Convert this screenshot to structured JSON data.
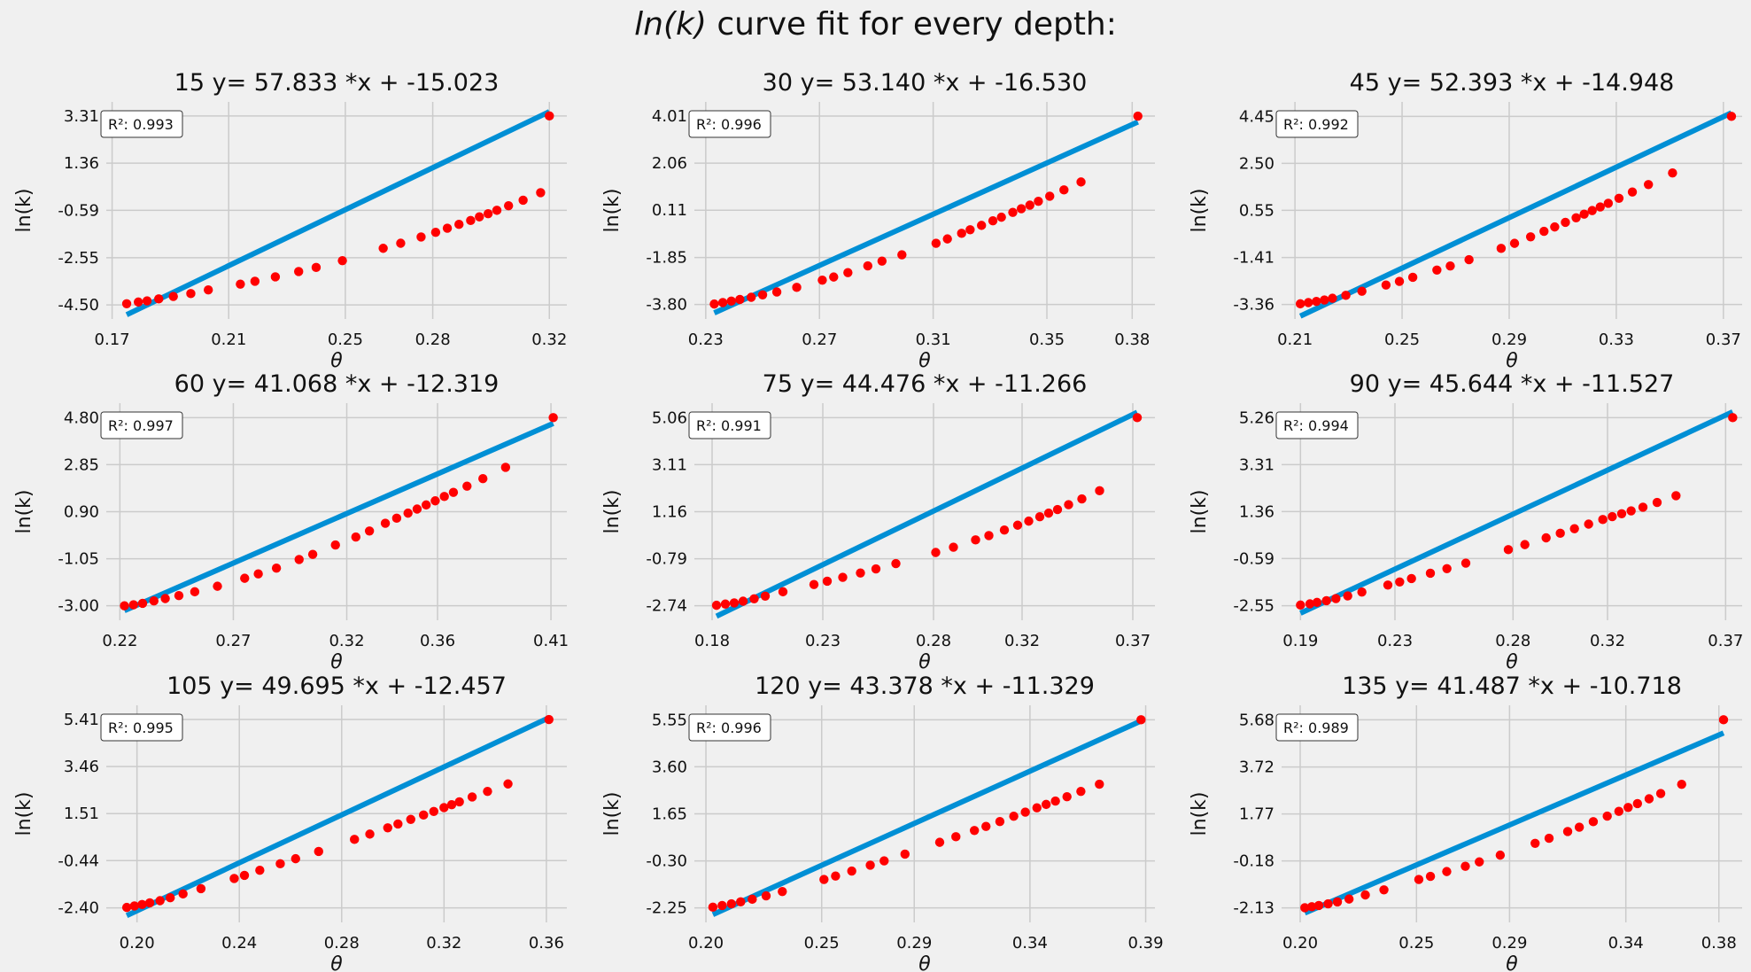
{
  "figure": {
    "suptitle": {
      "prefix": "ln",
      "var": "k",
      "suffix": " curve fit for every depth:"
    },
    "colors": {
      "background": "#f0f0f0",
      "grid": "#cbcbcb",
      "fit_line": "#008fd5",
      "points": "#ff0000",
      "text": "#111111"
    },
    "annotation_prefix": "R",
    "annotation_sup": "2"
  },
  "chart_data": [
    {
      "type": "scatter",
      "title": "15 y= 57.833 *x + -15.023",
      "xlabel": "θ",
      "ylabel": "ln(k)",
      "xlim": [
        0.168,
        0.326
      ],
      "ylim": [
        -5.08,
        3.89
      ],
      "xticks": [
        0.17,
        0.21,
        0.25,
        0.28,
        0.32
      ],
      "yticks": [
        -4.5,
        -2.55,
        -0.59,
        1.36,
        3.31
      ],
      "r2_label": "R²: 0.993",
      "fit": {
        "slope": 57.833,
        "intercept": -15.023,
        "x": [
          0.175,
          0.32
        ]
      },
      "points": [
        [
          0.175,
          -4.45
        ],
        [
          0.179,
          -4.38
        ],
        [
          0.182,
          -4.33
        ],
        [
          0.186,
          -4.25
        ],
        [
          0.191,
          -4.15
        ],
        [
          0.197,
          -4.03
        ],
        [
          0.203,
          -3.88
        ],
        [
          0.214,
          -3.64
        ],
        [
          0.219,
          -3.52
        ],
        [
          0.226,
          -3.34
        ],
        [
          0.234,
          -3.12
        ],
        [
          0.24,
          -2.95
        ],
        [
          0.249,
          -2.67
        ],
        [
          0.263,
          -2.16
        ],
        [
          0.269,
          -1.95
        ],
        [
          0.276,
          -1.69
        ],
        [
          0.281,
          -1.5
        ],
        [
          0.285,
          -1.33
        ],
        [
          0.289,
          -1.17
        ],
        [
          0.293,
          -1.01
        ],
        [
          0.296,
          -0.86
        ],
        [
          0.299,
          -0.73
        ],
        [
          0.302,
          -0.59
        ],
        [
          0.306,
          -0.4
        ],
        [
          0.311,
          -0.17
        ],
        [
          0.317,
          0.14
        ],
        [
          0.32,
          3.31
        ]
      ]
    },
    {
      "type": "scatter",
      "title": "30 y= 53.140 *x + -16.530",
      "xlabel": "θ",
      "ylabel": "ln(k)",
      "xlim": [
        0.226,
        0.388
      ],
      "ylim": [
        -4.4,
        4.6
      ],
      "xticks": [
        0.23,
        0.27,
        0.31,
        0.35,
        0.38
      ],
      "yticks": [
        -3.8,
        -1.85,
        0.11,
        2.06,
        4.01
      ],
      "r2_label": "R²: 0.996",
      "fit": {
        "slope": 53.14,
        "intercept": -16.53,
        "x": [
          0.233,
          0.382
        ]
      },
      "points": [
        [
          0.233,
          -3.78
        ],
        [
          0.236,
          -3.72
        ],
        [
          0.239,
          -3.66
        ],
        [
          0.242,
          -3.59
        ],
        [
          0.246,
          -3.5
        ],
        [
          0.25,
          -3.4
        ],
        [
          0.255,
          -3.28
        ],
        [
          0.262,
          -3.09
        ],
        [
          0.271,
          -2.79
        ],
        [
          0.275,
          -2.66
        ],
        [
          0.28,
          -2.48
        ],
        [
          0.287,
          -2.2
        ],
        [
          0.292,
          -2.0
        ],
        [
          0.299,
          -1.74
        ],
        [
          0.311,
          -1.26
        ],
        [
          0.315,
          -1.08
        ],
        [
          0.32,
          -0.85
        ],
        [
          0.323,
          -0.7
        ],
        [
          0.327,
          -0.52
        ],
        [
          0.331,
          -0.33
        ],
        [
          0.334,
          -0.18
        ],
        [
          0.338,
          0.02
        ],
        [
          0.341,
          0.17
        ],
        [
          0.344,
          0.32
        ],
        [
          0.347,
          0.48
        ],
        [
          0.351,
          0.69
        ],
        [
          0.356,
          0.95
        ],
        [
          0.362,
          1.28
        ],
        [
          0.382,
          4.01
        ]
      ]
    },
    {
      "type": "scatter",
      "title": "45 y= 52.393 *x + -14.948",
      "xlabel": "θ",
      "ylabel": "ln(k)",
      "xlim": [
        0.205,
        0.377
      ],
      "ylim": [
        -3.96,
        5.05
      ],
      "xticks": [
        0.21,
        0.25,
        0.29,
        0.33,
        0.37
      ],
      "yticks": [
        -3.36,
        -1.41,
        0.55,
        2.5,
        4.45
      ],
      "r2_label": "R²: 0.992",
      "fit": {
        "slope": 52.393,
        "intercept": -14.948,
        "x": [
          0.212,
          0.373
        ]
      },
      "points": [
        [
          0.212,
          -3.33
        ],
        [
          0.215,
          -3.28
        ],
        [
          0.218,
          -3.23
        ],
        [
          0.221,
          -3.17
        ],
        [
          0.224,
          -3.1
        ],
        [
          0.229,
          -2.98
        ],
        [
          0.235,
          -2.81
        ],
        [
          0.244,
          -2.55
        ],
        [
          0.249,
          -2.4
        ],
        [
          0.254,
          -2.23
        ],
        [
          0.263,
          -1.93
        ],
        [
          0.268,
          -1.76
        ],
        [
          0.275,
          -1.5
        ],
        [
          0.287,
          -1.03
        ],
        [
          0.292,
          -0.82
        ],
        [
          0.298,
          -0.55
        ],
        [
          0.303,
          -0.32
        ],
        [
          0.307,
          -0.14
        ],
        [
          0.311,
          0.05
        ],
        [
          0.315,
          0.24
        ],
        [
          0.318,
          0.39
        ],
        [
          0.321,
          0.54
        ],
        [
          0.324,
          0.69
        ],
        [
          0.327,
          0.84
        ],
        [
          0.331,
          1.05
        ],
        [
          0.336,
          1.31
        ],
        [
          0.342,
          1.62
        ],
        [
          0.351,
          2.1
        ],
        [
          0.373,
          4.45
        ]
      ]
    },
    {
      "type": "scatter",
      "title": "60 y= 41.068 *x + -12.319",
      "xlabel": "θ",
      "ylabel": "ln(k)",
      "xlim": [
        0.214,
        0.417
      ],
      "ylim": [
        -3.6,
        5.4
      ],
      "xticks": [
        0.22,
        0.27,
        0.32,
        0.36,
        0.41
      ],
      "yticks": [
        -3.0,
        -1.05,
        0.9,
        2.85,
        4.8
      ],
      "r2_label": "R²: 0.997",
      "fit": {
        "slope": 41.068,
        "intercept": -12.319,
        "x": [
          0.222,
          0.411
        ]
      },
      "points": [
        [
          0.222,
          -3.0
        ],
        [
          0.226,
          -2.96
        ],
        [
          0.23,
          -2.9
        ],
        [
          0.235,
          -2.8
        ],
        [
          0.24,
          -2.7
        ],
        [
          0.246,
          -2.58
        ],
        [
          0.253,
          -2.42
        ],
        [
          0.263,
          -2.19
        ],
        [
          0.275,
          -1.86
        ],
        [
          0.281,
          -1.68
        ],
        [
          0.289,
          -1.44
        ],
        [
          0.299,
          -1.08
        ],
        [
          0.305,
          -0.87
        ],
        [
          0.315,
          -0.48
        ],
        [
          0.324,
          -0.15
        ],
        [
          0.33,
          0.1
        ],
        [
          0.337,
          0.42
        ],
        [
          0.342,
          0.63
        ],
        [
          0.347,
          0.84
        ],
        [
          0.351,
          1.01
        ],
        [
          0.355,
          1.18
        ],
        [
          0.359,
          1.35
        ],
        [
          0.363,
          1.53
        ],
        [
          0.367,
          1.7
        ],
        [
          0.373,
          1.96
        ],
        [
          0.38,
          2.27
        ],
        [
          0.39,
          2.74
        ],
        [
          0.411,
          4.8
        ]
      ]
    },
    {
      "type": "scatter",
      "title": "75 y= 44.476 *x + -11.266",
      "xlabel": "θ",
      "ylabel": "ln(k)",
      "xlim": [
        0.172,
        0.38
      ],
      "ylim": [
        -3.34,
        5.66
      ],
      "xticks": [
        0.18,
        0.23,
        0.28,
        0.32,
        0.37
      ],
      "yticks": [
        -2.74,
        -0.79,
        1.16,
        3.11,
        5.06
      ],
      "r2_label": "R²: 0.991",
      "fit": {
        "slope": 44.476,
        "intercept": -11.266,
        "x": [
          0.182,
          0.372
        ]
      },
      "points": [
        [
          0.182,
          -2.72
        ],
        [
          0.186,
          -2.67
        ],
        [
          0.19,
          -2.62
        ],
        [
          0.194,
          -2.55
        ],
        [
          0.199,
          -2.45
        ],
        [
          0.204,
          -2.34
        ],
        [
          0.212,
          -2.16
        ],
        [
          0.226,
          -1.86
        ],
        [
          0.232,
          -1.72
        ],
        [
          0.239,
          -1.56
        ],
        [
          0.247,
          -1.38
        ],
        [
          0.254,
          -1.21
        ],
        [
          0.263,
          -0.99
        ],
        [
          0.281,
          -0.53
        ],
        [
          0.289,
          -0.31
        ],
        [
          0.299,
          -0.01
        ],
        [
          0.305,
          0.17
        ],
        [
          0.312,
          0.4
        ],
        [
          0.318,
          0.6
        ],
        [
          0.323,
          0.77
        ],
        [
          0.328,
          0.95
        ],
        [
          0.332,
          1.1
        ],
        [
          0.336,
          1.25
        ],
        [
          0.341,
          1.45
        ],
        [
          0.347,
          1.69
        ],
        [
          0.355,
          2.03
        ],
        [
          0.372,
          5.06
        ]
      ]
    },
    {
      "type": "scatter",
      "title": "90 y= 45.644 *x + -11.527",
      "xlabel": "θ",
      "ylabel": "ln(k)",
      "xlim": [
        0.182,
        0.377
      ],
      "ylim": [
        -3.15,
        5.86
      ],
      "xticks": [
        0.19,
        0.23,
        0.28,
        0.32,
        0.37
      ],
      "yticks": [
        -2.55,
        -0.59,
        1.36,
        3.31,
        5.26
      ],
      "r2_label": "R²: 0.994",
      "fit": {
        "slope": 45.644,
        "intercept": -11.527,
        "x": [
          0.19,
          0.373
        ]
      },
      "points": [
        [
          0.19,
          -2.52
        ],
        [
          0.194,
          -2.47
        ],
        [
          0.197,
          -2.41
        ],
        [
          0.201,
          -2.34
        ],
        [
          0.205,
          -2.25
        ],
        [
          0.21,
          -2.14
        ],
        [
          0.216,
          -1.98
        ],
        [
          0.227,
          -1.69
        ],
        [
          0.232,
          -1.56
        ],
        [
          0.237,
          -1.42
        ],
        [
          0.245,
          -1.2
        ],
        [
          0.252,
          -1.01
        ],
        [
          0.26,
          -0.78
        ],
        [
          0.278,
          -0.22
        ],
        [
          0.285,
          -0.01
        ],
        [
          0.294,
          0.27
        ],
        [
          0.3,
          0.46
        ],
        [
          0.306,
          0.65
        ],
        [
          0.312,
          0.84
        ],
        [
          0.318,
          1.03
        ],
        [
          0.322,
          1.15
        ],
        [
          0.326,
          1.27
        ],
        [
          0.33,
          1.39
        ],
        [
          0.335,
          1.54
        ],
        [
          0.341,
          1.74
        ],
        [
          0.349,
          2.02
        ],
        [
          0.373,
          5.26
        ]
      ]
    },
    {
      "type": "scatter",
      "title": "105 y= 49.695 *x + -12.457",
      "xlabel": "θ",
      "ylabel": "ln(k)",
      "xlim": [
        0.188,
        0.368
      ],
      "ylim": [
        -3.0,
        6.0
      ],
      "xticks": [
        0.2,
        0.24,
        0.28,
        0.32,
        0.36
      ],
      "yticks": [
        -2.4,
        -0.44,
        1.51,
        3.46,
        5.41
      ],
      "r2_label": "R²: 0.995",
      "fit": {
        "slope": 49.695,
        "intercept": -12.457,
        "x": [
          0.196,
          0.361
        ]
      },
      "points": [
        [
          0.196,
          -2.38
        ],
        [
          0.199,
          -2.32
        ],
        [
          0.202,
          -2.26
        ],
        [
          0.205,
          -2.19
        ],
        [
          0.209,
          -2.1
        ],
        [
          0.213,
          -1.98
        ],
        [
          0.218,
          -1.82
        ],
        [
          0.225,
          -1.6
        ],
        [
          0.238,
          -1.18
        ],
        [
          0.242,
          -1.05
        ],
        [
          0.248,
          -0.84
        ],
        [
          0.256,
          -0.57
        ],
        [
          0.262,
          -0.36
        ],
        [
          0.271,
          -0.06
        ],
        [
          0.285,
          0.44
        ],
        [
          0.291,
          0.66
        ],
        [
          0.298,
          0.92
        ],
        [
          0.302,
          1.08
        ],
        [
          0.307,
          1.27
        ],
        [
          0.312,
          1.45
        ],
        [
          0.316,
          1.6
        ],
        [
          0.32,
          1.76
        ],
        [
          0.323,
          1.88
        ],
        [
          0.326,
          2.0
        ],
        [
          0.331,
          2.2
        ],
        [
          0.337,
          2.43
        ],
        [
          0.345,
          2.74
        ],
        [
          0.361,
          5.41
        ]
      ]
    },
    {
      "type": "scatter",
      "title": "120 y= 43.378 *x + -11.329",
      "xlabel": "θ",
      "ylabel": "ln(k)",
      "xlim": [
        0.195,
        0.394
      ],
      "ylim": [
        -2.85,
        6.15
      ],
      "xticks": [
        0.2,
        0.25,
        0.29,
        0.34,
        0.39
      ],
      "yticks": [
        -2.25,
        -0.3,
        1.65,
        3.6,
        5.55
      ],
      "r2_label": "R²: 0.996",
      "fit": {
        "slope": 43.378,
        "intercept": -11.329,
        "x": [
          0.203,
          0.388
        ]
      },
      "points": [
        [
          0.203,
          -2.22
        ],
        [
          0.207,
          -2.15
        ],
        [
          0.211,
          -2.08
        ],
        [
          0.215,
          -2.0
        ],
        [
          0.22,
          -1.89
        ],
        [
          0.226,
          -1.75
        ],
        [
          0.233,
          -1.57
        ],
        [
          0.251,
          -1.07
        ],
        [
          0.256,
          -0.93
        ],
        [
          0.263,
          -0.72
        ],
        [
          0.271,
          -0.48
        ],
        [
          0.277,
          -0.3
        ],
        [
          0.286,
          -0.02
        ],
        [
          0.301,
          0.47
        ],
        [
          0.308,
          0.7
        ],
        [
          0.316,
          0.96
        ],
        [
          0.321,
          1.13
        ],
        [
          0.327,
          1.33
        ],
        [
          0.333,
          1.55
        ],
        [
          0.338,
          1.72
        ],
        [
          0.343,
          1.9
        ],
        [
          0.347,
          2.04
        ],
        [
          0.351,
          2.18
        ],
        [
          0.356,
          2.36
        ],
        [
          0.362,
          2.58
        ],
        [
          0.37,
          2.88
        ],
        [
          0.388,
          5.55
        ]
      ]
    },
    {
      "type": "scatter",
      "title": "135 y= 41.487 *x + -10.718",
      "xlabel": "θ",
      "ylabel": "ln(k)",
      "xlim": [
        0.192,
        0.39
      ],
      "ylim": [
        -2.73,
        6.28
      ],
      "xticks": [
        0.2,
        0.25,
        0.29,
        0.34,
        0.38
      ],
      "yticks": [
        -2.13,
        -0.18,
        1.77,
        3.72,
        5.68
      ],
      "r2_label": "R²: 0.989",
      "fit": {
        "slope": 41.487,
        "intercept": -10.718,
        "x": [
          0.202,
          0.382
        ]
      },
      "points": [
        [
          0.202,
          -2.12
        ],
        [
          0.205,
          -2.08
        ],
        [
          0.208,
          -2.03
        ],
        [
          0.212,
          -1.96
        ],
        [
          0.216,
          -1.88
        ],
        [
          0.221,
          -1.76
        ],
        [
          0.228,
          -1.59
        ],
        [
          0.236,
          -1.38
        ],
        [
          0.251,
          -0.95
        ],
        [
          0.256,
          -0.82
        ],
        [
          0.263,
          -0.62
        ],
        [
          0.271,
          -0.4
        ],
        [
          0.277,
          -0.22
        ],
        [
          0.286,
          0.06
        ],
        [
          0.301,
          0.55
        ],
        [
          0.307,
          0.76
        ],
        [
          0.315,
          1.04
        ],
        [
          0.32,
          1.22
        ],
        [
          0.326,
          1.45
        ],
        [
          0.332,
          1.68
        ],
        [
          0.337,
          1.88
        ],
        [
          0.341,
          2.04
        ],
        [
          0.345,
          2.2
        ],
        [
          0.35,
          2.4
        ],
        [
          0.355,
          2.62
        ],
        [
          0.364,
          3.0
        ],
        [
          0.382,
          5.68
        ]
      ]
    }
  ]
}
